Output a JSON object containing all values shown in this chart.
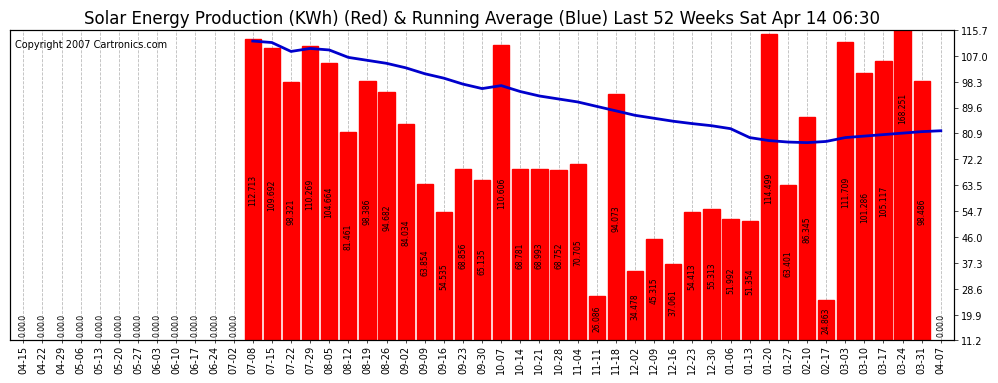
{
  "title": "Solar Energy Production (KWh) (Red) & Running Average (Blue) Last 52 Weeks Sat Apr 14 06:30",
  "copyright": "Copyright 2007 Cartronics.com",
  "bar_color": "#ff0000",
  "line_color": "#0000cc",
  "background_color": "#ffffff",
  "grid_color": "#bbbbbb",
  "right_yticks": [
    11.2,
    19.9,
    28.6,
    37.3,
    46.0,
    54.7,
    63.5,
    72.2,
    80.9,
    89.6,
    98.3,
    107.0,
    115.7
  ],
  "categories": [
    "04-15",
    "04-22",
    "04-29",
    "05-06",
    "05-13",
    "05-20",
    "05-27",
    "06-03",
    "06-10",
    "06-17",
    "06-24",
    "07-02",
    "07-08",
    "07-15",
    "07-22",
    "07-29",
    "08-05",
    "08-12",
    "08-19",
    "08-26",
    "09-02",
    "09-09",
    "09-16",
    "09-23",
    "09-30",
    "10-07",
    "10-14",
    "10-21",
    "10-28",
    "11-04",
    "11-11",
    "11-18",
    "12-02",
    "12-09",
    "12-16",
    "12-23",
    "12-30",
    "01-06",
    "01-13",
    "01-20",
    "01-27",
    "02-10",
    "02-17",
    "03-03",
    "03-10",
    "03-17",
    "03-24",
    "03-31",
    "04-07"
  ],
  "values": [
    0.0,
    0.0,
    0.0,
    0.0,
    0.0,
    0.0,
    0.0,
    0.0,
    0.0,
    0.0,
    0.0,
    0.0,
    112.713,
    109.692,
    98.321,
    110.269,
    104.664,
    81.461,
    98.386,
    94.682,
    84.034,
    63.854,
    54.535,
    68.856,
    65.135,
    110.606,
    68.781,
    68.993,
    68.752,
    70.705,
    26.086,
    94.073,
    34.478,
    45.315,
    37.061,
    54.413,
    55.313,
    51.992,
    51.354,
    114.499,
    63.401,
    86.345,
    24.863,
    111.709,
    101.286,
    105.117,
    168.251,
    98.486,
    0.0
  ],
  "running_avg": [
    null,
    null,
    null,
    null,
    null,
    null,
    null,
    null,
    null,
    null,
    null,
    null,
    112.0,
    111.5,
    108.5,
    109.5,
    109.0,
    106.5,
    105.5,
    104.5,
    103.0,
    101.0,
    99.5,
    97.5,
    96.0,
    97.0,
    95.0,
    93.5,
    92.5,
    91.5,
    90.0,
    88.5,
    87.0,
    86.0,
    85.0,
    84.2,
    83.5,
    82.5,
    79.5,
    78.5,
    78.0,
    77.8,
    78.2,
    79.5,
    80.0,
    80.5,
    81.0,
    81.5,
    81.8
  ],
  "ylim_low": 11.2,
  "ylim_high": 115.7,
  "title_fontsize": 12,
  "tick_fontsize": 7,
  "bar_value_fontsize": 5.5,
  "copyright_fontsize": 7
}
